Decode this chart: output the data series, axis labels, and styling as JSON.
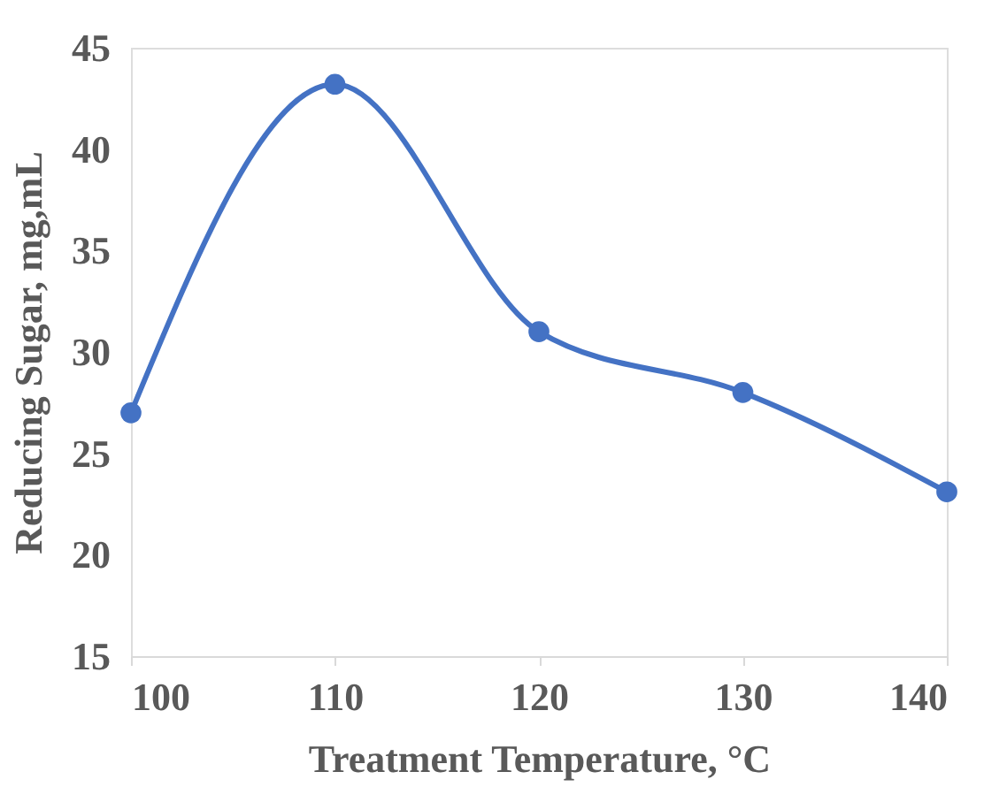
{
  "chart_data": {
    "type": "line",
    "xlabel": "Treatment Temperature, °C",
    "ylabel": "Reducing Sugar, mg,mL",
    "x": [
      100,
      110,
      120,
      130,
      140
    ],
    "series": [
      {
        "color": "#4472c4",
        "values": [
          27.0,
          43.2,
          31.0,
          28.0,
          23.1
        ]
      }
    ],
    "xlim": [
      100,
      140
    ],
    "xticks": [
      100,
      110,
      120,
      130,
      140
    ],
    "ylim": [
      15,
      45
    ],
    "yticks": [
      15,
      20,
      25,
      30,
      35,
      40,
      45
    ],
    "grid": false,
    "legend": false,
    "marker": "circle",
    "line_style": "solid"
  }
}
